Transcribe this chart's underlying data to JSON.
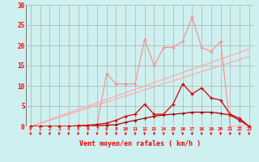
{
  "x": [
    0,
    1,
    2,
    3,
    4,
    5,
    6,
    7,
    8,
    9,
    10,
    11,
    12,
    13,
    14,
    15,
    16,
    17,
    18,
    19,
    20,
    21,
    22,
    23
  ],
  "line_pink_marked": [
    0,
    0,
    0,
    0,
    0,
    0,
    0,
    0.5,
    13,
    10.5,
    10.5,
    10.5,
    21.5,
    15,
    19.5,
    19.5,
    21,
    27,
    19.5,
    18.5,
    21,
    0,
    0,
    0
  ],
  "line_red_marked": [
    0,
    0,
    0,
    0,
    0,
    0.2,
    0.3,
    0.5,
    0.8,
    1.5,
    2.5,
    3,
    5.5,
    3,
    3,
    5.5,
    10.5,
    8,
    9.5,
    7,
    6.5,
    3,
    2,
    0
  ],
  "line_darkred_flat": [
    0,
    0,
    0,
    0,
    0,
    0,
    0.1,
    0.2,
    0.3,
    0.4,
    1,
    1.5,
    2,
    2.5,
    2.8,
    3.0,
    3.2,
    3.5,
    3.5,
    3.5,
    3.2,
    2.8,
    1.5,
    0
  ],
  "line_slope1": [
    0,
    0.83,
    1.66,
    2.49,
    3.32,
    4.15,
    4.98,
    5.81,
    6.64,
    7.47,
    8.3,
    9.13,
    9.96,
    10.79,
    11.62,
    12.45,
    13.28,
    14.11,
    14.94,
    15.77,
    16.6,
    17.43,
    18.26,
    19.09
  ],
  "line_slope2": [
    0,
    0.75,
    1.5,
    2.25,
    3.0,
    3.75,
    4.5,
    5.25,
    6.0,
    6.75,
    7.5,
    8.25,
    9.0,
    9.75,
    10.5,
    11.25,
    12.0,
    12.75,
    13.5,
    14.25,
    15.0,
    15.75,
    16.5,
    17.25
  ],
  "bg_color": "#cef0f0",
  "grid_color": "#b0b0b0",
  "color_pink": "#ff8888",
  "color_red": "#dd0000",
  "color_darkred": "#aa0000",
  "color_slope": "#ffaaaa",
  "xlabel": "Vent moyen/en rafales ( km/h )",
  "ylim": [
    0,
    30
  ],
  "xlim": [
    -0.5,
    23.5
  ],
  "yticks": [
    0,
    5,
    10,
    15,
    20,
    25,
    30
  ],
  "xticks": [
    0,
    1,
    2,
    3,
    4,
    5,
    6,
    7,
    8,
    9,
    10,
    11,
    12,
    13,
    14,
    15,
    16,
    17,
    18,
    19,
    20,
    21,
    22,
    23
  ]
}
